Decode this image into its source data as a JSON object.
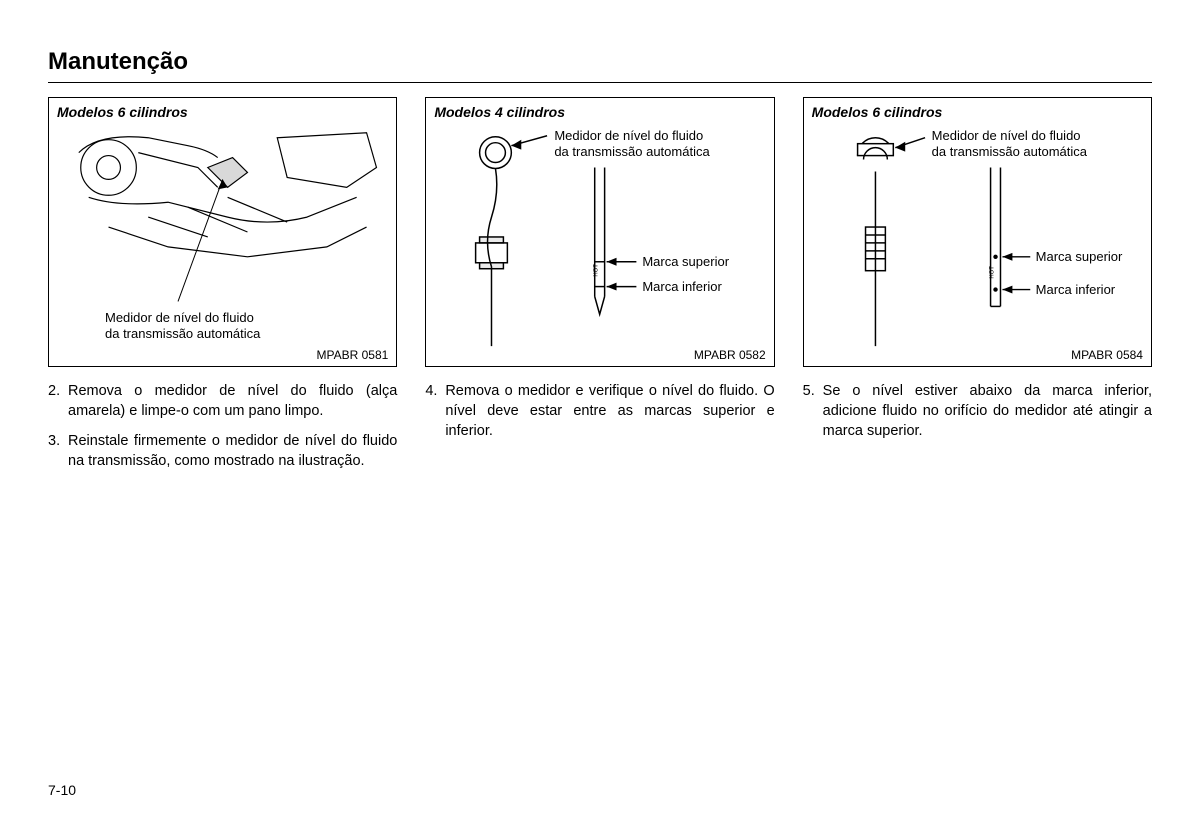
{
  "title": "Manutenção",
  "page_number": "7-10",
  "columns": [
    {
      "figure": {
        "label": "Modelos 6 cilindros",
        "code": "MPABR 0581",
        "callout": "Medidor de nível do fluido\nda transmissão automática"
      },
      "steps": [
        {
          "n": "2.",
          "t": "Remova o medidor de nível do fluido (alça amarela) e limpe-o com um pano limpo."
        },
        {
          "n": "3.",
          "t": "Reinstale firmemente o medidor de nível do fluido na transmissão, como mostrado na ilustração."
        }
      ]
    },
    {
      "figure": {
        "label": "Modelos 4 cilindros",
        "code": "MPABR 0582",
        "dipstick_label": "Medidor de nível do fluido\nda transmissão automática",
        "mark_upper": "Marca superior",
        "mark_lower": "Marca inferior"
      },
      "steps": [
        {
          "n": "4.",
          "t": "Remova o medidor e verifique o nível do fluido. O nível deve estar entre as marcas superior e inferior."
        }
      ]
    },
    {
      "figure": {
        "label": "Modelos 6 cilindros",
        "code": "MPABR 0584",
        "dipstick_label": "Medidor de nível do fluido\nda transmissão automática",
        "mark_upper": "Marca superior",
        "mark_lower": "Marca inferior"
      },
      "steps": [
        {
          "n": "5.",
          "t": "Se o nível estiver abaixo da marca inferior, adicione fluido no orifício do medidor até atingir a marca superior."
        }
      ]
    }
  ],
  "style": {
    "text_color": "#000000",
    "bg_color": "#ffffff",
    "border_color": "#000000",
    "title_fontsize": 24,
    "body_fontsize": 14.5,
    "fig_label_fontsize": 14,
    "callout_fontsize": 13
  }
}
